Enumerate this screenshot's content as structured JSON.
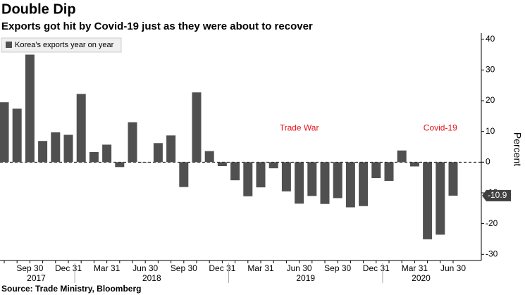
{
  "chart_data": {
    "type": "bar",
    "title": "Double Dip",
    "subtitle": "Exports got hit by Covid-19 just as they were about to recover",
    "source": "Source: Trade Ministry, Bloomberg",
    "y_label": "Percent",
    "series_name": "Korea's exports year on year",
    "color": "#505050",
    "categories": [
      null,
      null,
      "Sep 30",
      null,
      null,
      "Dec 31",
      null,
      null,
      "Mar 31",
      null,
      null,
      "Jun 30",
      null,
      null,
      "Sep 30",
      null,
      null,
      "Dec 31",
      null,
      null,
      "Mar 31",
      null,
      null,
      "Jun 30",
      null,
      null,
      "Sep 30",
      null,
      null,
      "Dec 31",
      null,
      null,
      "Mar 31",
      null,
      null,
      "Jun 30"
    ],
    "years": [
      "2017",
      "2018",
      "2019",
      "2020"
    ],
    "values": [
      19.5,
      17.4,
      35.0,
      6.9,
      9.7,
      8.9,
      22.2,
      3.3,
      5.7,
      -1.6,
      13.0,
      -0.1,
      6.2,
      8.7,
      -8.1,
      22.7,
      3.6,
      -1.3,
      -5.9,
      -11.1,
      -8.2,
      -2.0,
      -9.5,
      -13.5,
      -11.0,
      -13.6,
      -11.7,
      -14.7,
      -14.3,
      -5.2,
      -6.1,
      3.8,
      -1.4,
      -25.1,
      -23.6,
      -10.9
    ],
    "ylim": [
      -32,
      42
    ],
    "yticks": [
      40,
      30,
      20,
      10,
      0,
      -10,
      -20,
      -30
    ],
    "annotations": [
      {
        "text": "Trade War",
        "index": 23,
        "value": 11
      },
      {
        "text": "Covid-19",
        "index": 34,
        "value": 11
      }
    ]
  }
}
